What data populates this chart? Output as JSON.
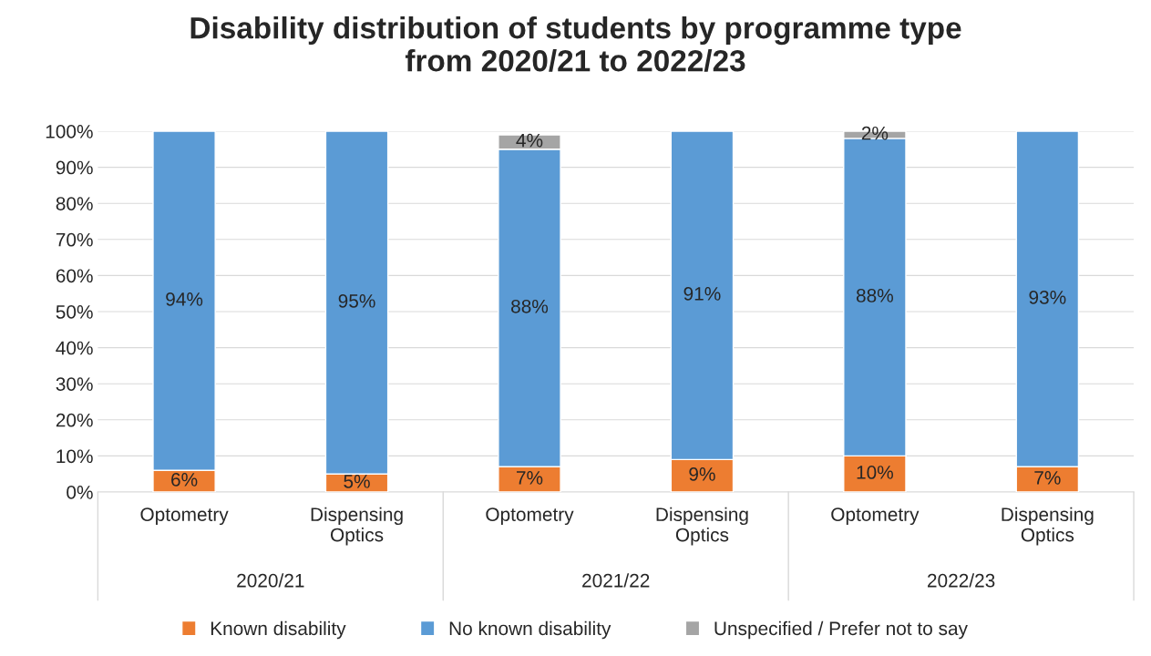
{
  "chart_data": {
    "type": "bar",
    "title": "Disability distribution of students by programme type\nfrom 2020/21 to 2022/23",
    "categories": [
      "Optometry",
      "Dispensing\nOptics",
      "Optometry",
      "Dispensing\nOptics",
      "Optometry",
      "Dispensing\nOptics"
    ],
    "annotations": [
      "2020/21",
      "2021/22",
      "2022/23"
    ],
    "stacked": true,
    "grid": "y",
    "legend": "bottom",
    "ylim": [
      0,
      100
    ],
    "yticks": [
      {
        "value": 0,
        "label": "0%"
      },
      {
        "value": 10,
        "label": "10%"
      },
      {
        "value": 20,
        "label": "20%"
      },
      {
        "value": 30,
        "label": "30%"
      },
      {
        "value": 40,
        "label": "40%"
      },
      {
        "value": 50,
        "label": "50%"
      },
      {
        "value": 60,
        "label": "60%"
      },
      {
        "value": 70,
        "label": "70%"
      },
      {
        "value": 80,
        "label": "80%"
      },
      {
        "value": 90,
        "label": "90%"
      },
      {
        "value": 100,
        "label": "100%"
      }
    ],
    "series": [
      {
        "name": "Known disability",
        "color": "#ed7d31",
        "values": [
          6,
          5,
          7,
          9,
          10,
          7
        ],
        "value_labels": [
          "6%",
          "5%",
          "7%",
          "9%",
          "10%",
          "7%"
        ]
      },
      {
        "name": "No known disability",
        "color": "#5b9bd5",
        "values": [
          94,
          95,
          88,
          91,
          88,
          93
        ],
        "value_labels": [
          "94%",
          "95%",
          "88%",
          "91%",
          "88%",
          "93%"
        ]
      },
      {
        "name": "Unspecified / Prefer not to say",
        "color": "#a5a5a5",
        "values": [
          null,
          null,
          4,
          null,
          2,
          null
        ],
        "value_labels": [
          null,
          null,
          "4%",
          null,
          "2%",
          null
        ]
      }
    ]
  }
}
